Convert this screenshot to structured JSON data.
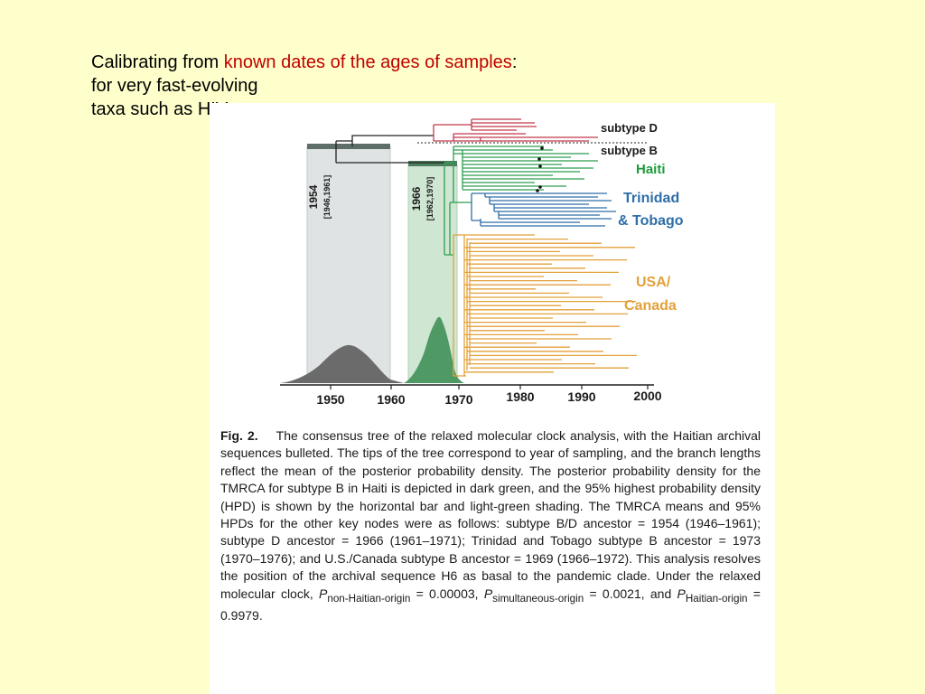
{
  "heading": {
    "line1_prefix": "Calibrating from ",
    "line1_highlight": "known dates of the ages of samples",
    "line1_suffix": ":",
    "line2": "for very fast-evolving",
    "line3": "taxa such as HIV"
  },
  "figure": {
    "clade_labels": {
      "subtype_d": "subtype D",
      "subtype_b": "subtype B",
      "haiti": "Haiti",
      "trinidad_line1": "Trinidad",
      "trinidad_line2": "& Tobago",
      "usa_line1": "USA/",
      "usa_line2": "Canada"
    },
    "node_dates": [
      {
        "year": "1954",
        "interval": "[1946,1961]"
      },
      {
        "year": "1966",
        "interval": "[1962,1970]"
      }
    ],
    "axis_ticks": [
      "1950",
      "1960",
      "1970",
      "1980",
      "1990",
      "2000"
    ],
    "colors": {
      "subtype_d": "#c0394b",
      "haiti": "#2e9e4f",
      "trinidad": "#2e6ea8",
      "usa_canada": "#e3a13a",
      "density_dark": "#6b6b6b",
      "density_green": "#4f9a64",
      "hpd_shade_grey": "#dfe3e3",
      "hpd_shade_green": "#cfe6d2"
    }
  },
  "caption": {
    "label": "Fig. 2.",
    "text": "The consensus tree of the relaxed molecular clock analysis, with the Haitian archival sequences bulleted. The tips of the tree correspond to year of sampling, and the branch lengths reflect the mean of the posterior probability density. The posterior probability density for the TMRCA for subtype B in Haiti is depicted in dark green, and the 95% highest probability density (HPD) is shown by the horizontal bar and light-green shading. The TMRCA means and 95% HPDs for the other key nodes were as follows: subtype B/D ancestor = 1954 (1946–1961); subtype D ancestor = 1966 (1961–1971); Trinidad and Tobago subtype B ancestor = 1973 (1970–1976); and U.S./Canada subtype B ancestor = 1969 (1966–1972). This analysis resolves the position of the archival sequence H6 as basal to the pandemic clade. Under the relaxed molecular clock,",
    "p1_sym": "P",
    "p1_sub": "non-Haitian-origin",
    "p1_val": " = 0.00003, ",
    "p2_sym": "P",
    "p2_sub": "simultaneous-origin",
    "p2_val": " = 0.0021, and ",
    "p3_sym": "P",
    "p3_sub": "Haitian-origin",
    "p3_val": " = 0.9979."
  }
}
